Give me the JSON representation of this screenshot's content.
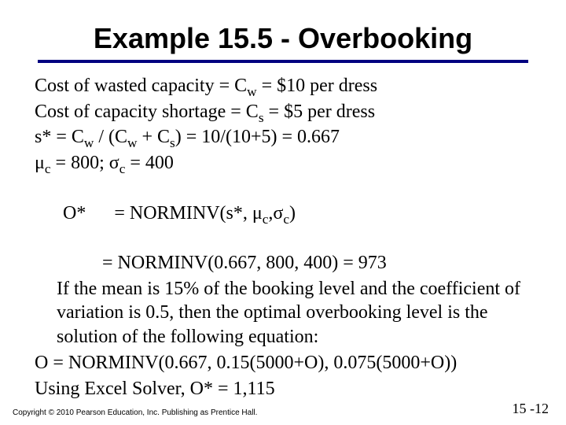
{
  "title": "Example 15.5 - Overbooking",
  "rule_color": "#000080",
  "body": {
    "l1a": "Cost of wasted capacity = C",
    "l1b": " = $10 per dress",
    "sub_w": "w",
    "l2a": "Cost of capacity shortage = C",
    "l2b": " = $5 per dress",
    "sub_s": "s",
    "l3a": "s* = C",
    "l3b": " / (C",
    "l3c": " +  C",
    "l3d": ") = 10/(10+5) = 0.667",
    "l4a": "μ",
    "l4b": " = 800; σ",
    "l4c": " = 400",
    "sub_c": "c",
    "l5a": "O*      = NORMINV(s*, μ",
    "l5b": ",σ",
    "l5c": ")",
    "l6": "= NORMINV(0.667, 800, 400) = 973",
    "l7": "If the mean is 15% of the booking level and the coefficient of variation is 0.5, then the optimal overbooking level is the solution of the following equation:",
    "l8": "O = NORMINV(0.667, 0.15(5000+O), 0.075(5000+O))",
    "l9": "Using Excel Solver, O* = 1,115"
  },
  "footer": "Copyright © 2010 Pearson Education, Inc. Publishing as Prentice Hall.",
  "pagenum": "15 -12",
  "style": {
    "title_fontsize": 36,
    "body_fontsize": 24,
    "footer_fontsize": 10,
    "pagenum_fontsize": 18,
    "background": "#ffffff",
    "text_color": "#000000",
    "title_font": "Arial",
    "body_font": "Times New Roman"
  }
}
